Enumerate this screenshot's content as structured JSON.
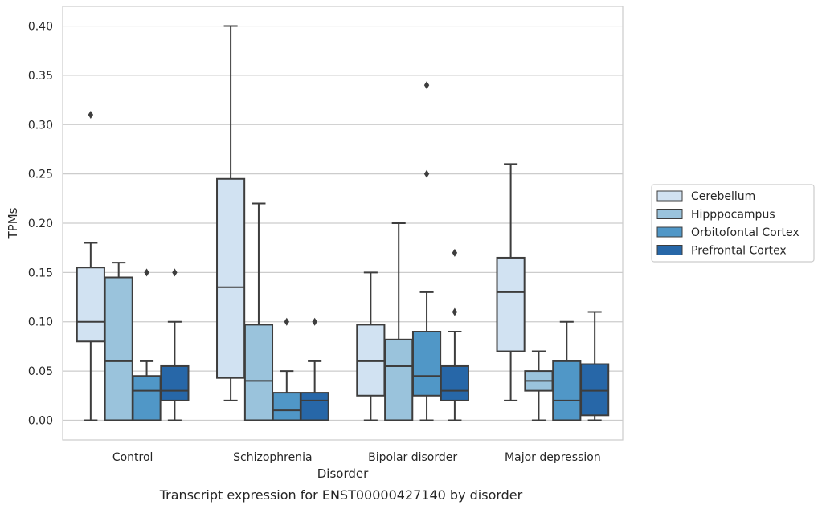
{
  "chart_data": {
    "type": "box",
    "caption": "Transcript expression for ENST00000427140 by disorder",
    "xlabel": "Disorder",
    "ylabel": "TPMs",
    "ylim": [
      -0.02,
      0.42
    ],
    "yticks": [
      0.0,
      0.05,
      0.1,
      0.15,
      0.2,
      0.25,
      0.3,
      0.35,
      0.4
    ],
    "ytick_labels": [
      "0.00",
      "0.05",
      "0.10",
      "0.15",
      "0.20",
      "0.25",
      "0.30",
      "0.35",
      "0.40"
    ],
    "grid": "horizontal",
    "legend_position": "right",
    "categories": [
      "Control",
      "Schizophrenia",
      "Bipolar disorder",
      "Major depression"
    ],
    "series": [
      {
        "name": "Cerebellum",
        "color": "#d1e2f2",
        "boxes": [
          {
            "whisker_low": 0.0,
            "q1": 0.08,
            "median": 0.1,
            "q3": 0.155,
            "whisker_high": 0.18,
            "outliers": [
              0.31
            ]
          },
          {
            "whisker_low": 0.02,
            "q1": 0.043,
            "median": 0.135,
            "q3": 0.245,
            "whisker_high": 0.4,
            "outliers": []
          },
          {
            "whisker_low": 0.0,
            "q1": 0.025,
            "median": 0.06,
            "q3": 0.097,
            "whisker_high": 0.15,
            "outliers": []
          },
          {
            "whisker_low": 0.02,
            "q1": 0.07,
            "median": 0.13,
            "q3": 0.165,
            "whisker_high": 0.26,
            "outliers": []
          }
        ]
      },
      {
        "name": "Hipppocampus",
        "color": "#9ac3dc",
        "boxes": [
          {
            "whisker_low": 0.0,
            "q1": 0.0,
            "median": 0.06,
            "q3": 0.145,
            "whisker_high": 0.16,
            "outliers": []
          },
          {
            "whisker_low": 0.0,
            "q1": 0.0,
            "median": 0.04,
            "q3": 0.097,
            "whisker_high": 0.22,
            "outliers": []
          },
          {
            "whisker_low": 0.0,
            "q1": 0.0,
            "median": 0.055,
            "q3": 0.082,
            "whisker_high": 0.2,
            "outliers": []
          },
          {
            "whisker_low": 0.0,
            "q1": 0.03,
            "median": 0.04,
            "q3": 0.05,
            "whisker_high": 0.07,
            "outliers": []
          }
        ]
      },
      {
        "name": "Orbitofontal Cortex",
        "color": "#5097c7",
        "boxes": [
          {
            "whisker_low": 0.0,
            "q1": 0.0,
            "median": 0.03,
            "q3": 0.045,
            "whisker_high": 0.06,
            "outliers": [
              0.15
            ]
          },
          {
            "whisker_low": 0.0,
            "q1": 0.0,
            "median": 0.01,
            "q3": 0.028,
            "whisker_high": 0.05,
            "outliers": [
              0.1
            ]
          },
          {
            "whisker_low": 0.0,
            "q1": 0.025,
            "median": 0.045,
            "q3": 0.09,
            "whisker_high": 0.13,
            "outliers": [
              0.34,
              0.25
            ]
          },
          {
            "whisker_low": 0.0,
            "q1": 0.0,
            "median": 0.02,
            "q3": 0.06,
            "whisker_high": 0.1,
            "outliers": []
          }
        ]
      },
      {
        "name": "Prefrontal Cortex",
        "color": "#2767a8",
        "boxes": [
          {
            "whisker_low": 0.0,
            "q1": 0.02,
            "median": 0.03,
            "q3": 0.055,
            "whisker_high": 0.1,
            "outliers": [
              0.15
            ]
          },
          {
            "whisker_low": 0.0,
            "q1": 0.0,
            "median": 0.02,
            "q3": 0.028,
            "whisker_high": 0.06,
            "outliers": [
              0.1
            ]
          },
          {
            "whisker_low": 0.0,
            "q1": 0.02,
            "median": 0.03,
            "q3": 0.055,
            "whisker_high": 0.09,
            "outliers": [
              0.17,
              0.11
            ]
          },
          {
            "whisker_low": 0.0,
            "q1": 0.005,
            "median": 0.03,
            "q3": 0.057,
            "whisker_high": 0.11,
            "outliers": []
          }
        ]
      }
    ]
  }
}
